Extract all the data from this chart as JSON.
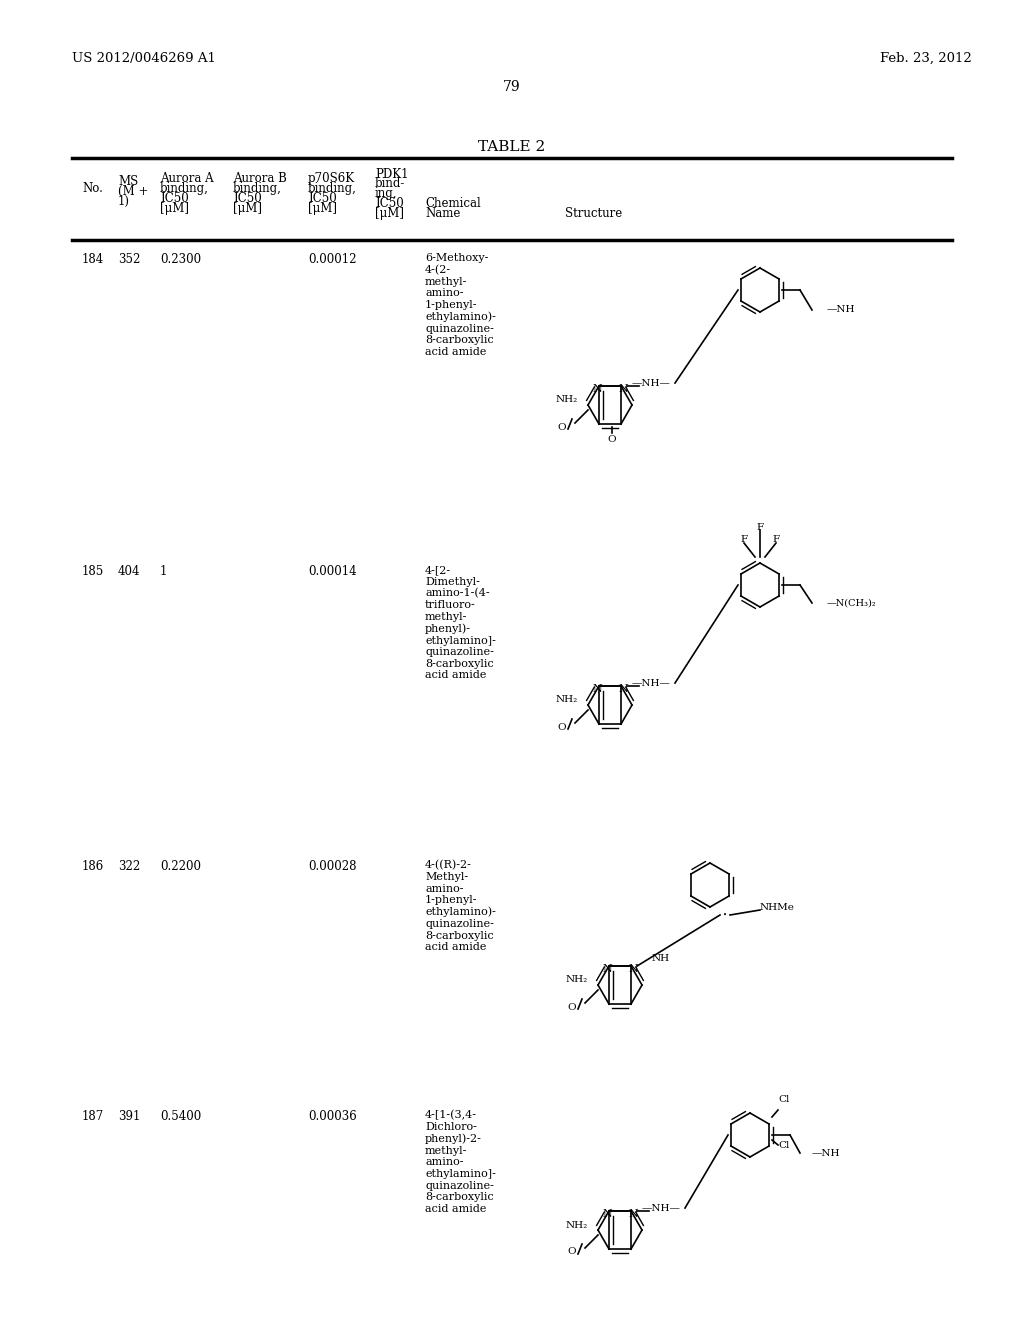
{
  "page_header_left": "US 2012/0046269 A1",
  "page_header_right": "Feb. 23, 2012",
  "page_number": "79",
  "table_title": "TABLE 2",
  "background_color": "#ffffff",
  "text_color": "#000000",
  "col_headers": {
    "no": "No.",
    "ms": "MS\n(M +\n1)",
    "aurora_a": "Aurora A\nbinding,\nIC50\n[μM]",
    "aurora_b": "Aurora B\nbinding,\nIC50\n[μM]",
    "p70s6k": "p70S6K\nbinding,\nIC50\n[μM]",
    "pdk1": "PDK1\nbind-\ning,\nIC50\n[μM]",
    "chem_name": "Chemical\nName",
    "structure": "Structure"
  },
  "rows": [
    {
      "no": "184",
      "ms": "352",
      "aurora_a": "0.2300",
      "aurora_b": "",
      "p70s6k": "0.00012",
      "pdk1": "",
      "chem_name": "6-Methoxy-\n4-(2-\nmethyl-\namino-\n1-phenyl-\nethylamino)-\nquinazoline-\n8-carboxylic\nacid amide",
      "structure_id": 1
    },
    {
      "no": "185",
      "ms": "404",
      "aurora_a": "1",
      "aurora_b": "",
      "p70s6k": "0.00014",
      "pdk1": "",
      "chem_name": "4-[2-\nDimethyl-\namino-1-(4-\ntrifluoro-\nmethyl-\nphenyl)-\nethylamino]-\nquinazoline-\n8-carboxylic\nacid amide",
      "structure_id": 2
    },
    {
      "no": "186",
      "ms": "322",
      "aurora_a": "0.2200",
      "aurora_b": "",
      "p70s6k": "0.00028",
      "pdk1": "",
      "chem_name": "4-((R)-2-\nMethyl-\namino-\n1-phenyl-\nethylamino)-\nquinazoline-\n8-carboxylic\nacid amide",
      "structure_id": 3
    },
    {
      "no": "187",
      "ms": "391",
      "aurora_a": "0.5400",
      "aurora_b": "",
      "p70s6k": "0.00036",
      "pdk1": "",
      "chem_name": "4-[1-(3,4-\nDichloro-\nphenyl)-2-\nmethyl-\namino-\nethylamino]-\nquinazoline-\n8-carboxylic\nacid amide",
      "structure_id": 4
    }
  ]
}
